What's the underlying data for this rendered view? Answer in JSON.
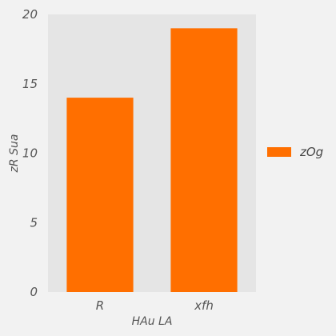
{
  "chart_data": {
    "type": "bar",
    "title": "",
    "xlabel": "HAu LA",
    "ylabel": "zR Sua",
    "categories": [
      "R",
      "xfh"
    ],
    "series": [
      {
        "name": "zOg",
        "values": [
          14,
          19
        ],
        "color": "#ff6f00"
      }
    ],
    "ylim": [
      0,
      20
    ],
    "yticks": [
      0,
      5,
      10,
      15,
      20
    ],
    "ytick_labels": [
      "0",
      "5",
      "10",
      "15",
      "20"
    ],
    "grid": false,
    "legend_position": "right",
    "plot_background": "#e5e5e5",
    "figure_background": "#f2f2f2"
  }
}
